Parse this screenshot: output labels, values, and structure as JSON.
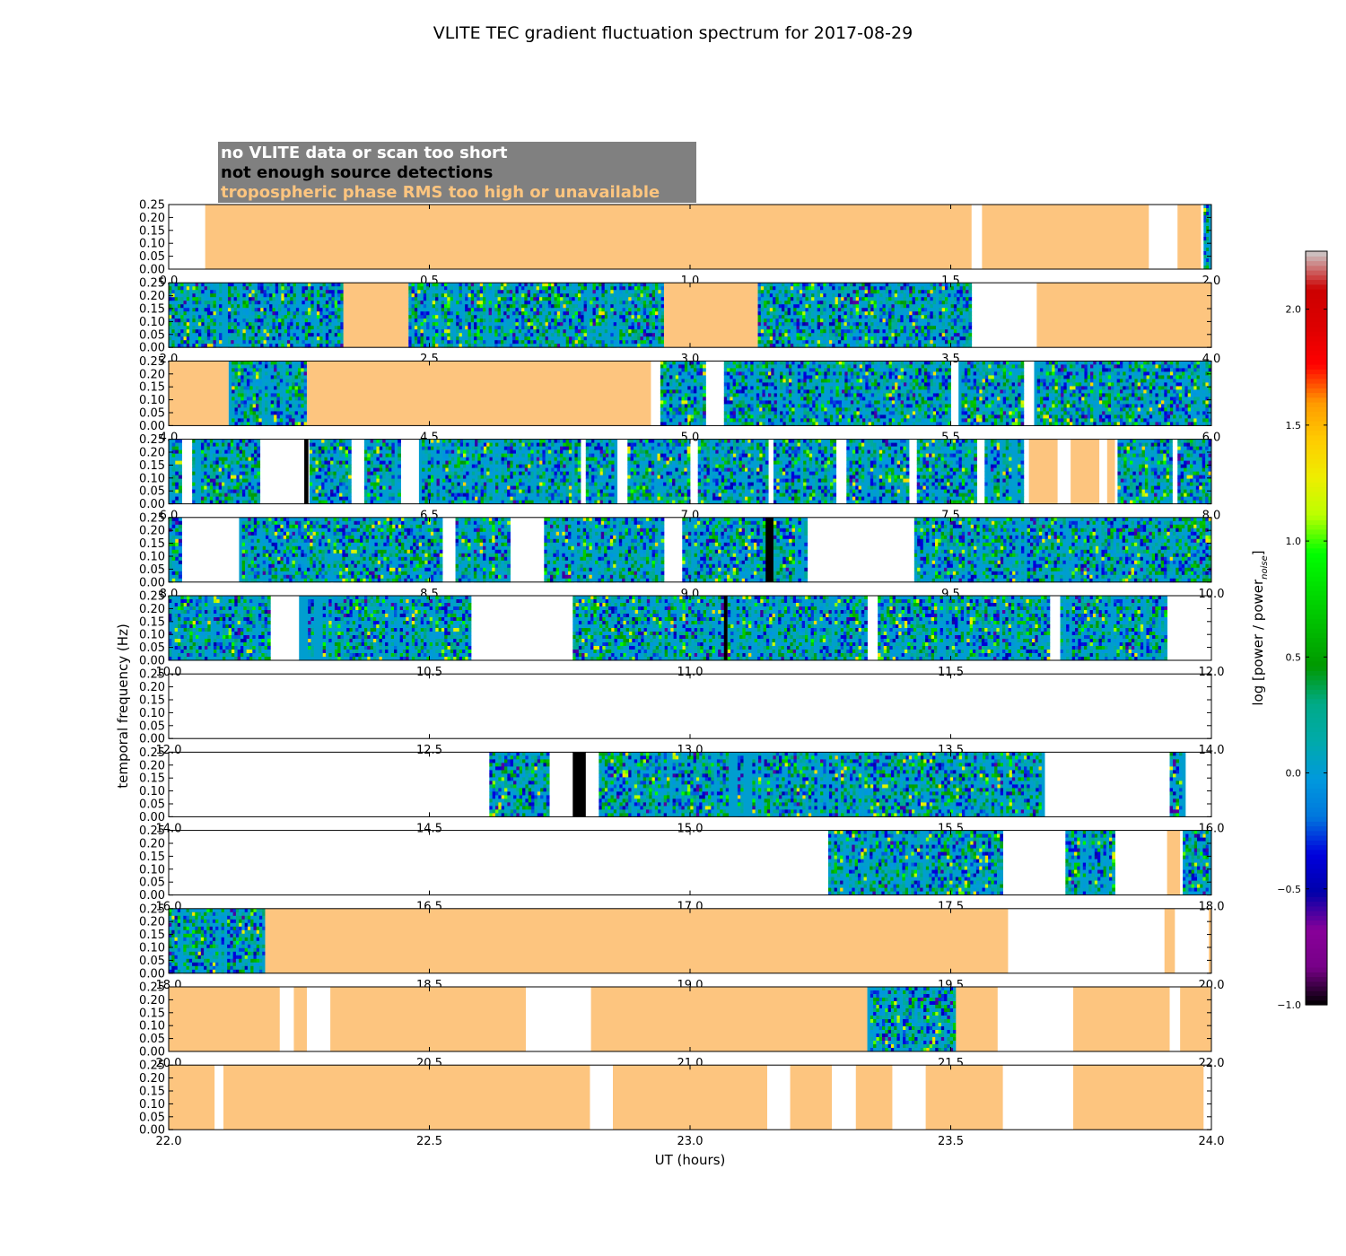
{
  "chart_data": {
    "type": "heatmap",
    "title": "VLITE TEC gradient fluctuation spectrum for 2017-08-29",
    "xlabel": "UT (hours)",
    "ylabel": "temporal frequency (Hz)",
    "colorbar": {
      "label_main": "log [power / power",
      "label_sub": "noise",
      "label_end": "]",
      "range": [
        -1.0,
        2.25
      ],
      "ticks": [
        {
          "value": -1.0,
          "label": "−1.0"
        },
        {
          "value": -0.5,
          "label": "−0.5"
        },
        {
          "value": 0.0,
          "label": "0.0"
        },
        {
          "value": 0.5,
          "label": "0.5"
        },
        {
          "value": 1.0,
          "label": "1.0"
        },
        {
          "value": 1.5,
          "label": "1.5"
        },
        {
          "value": 2.0,
          "label": "2.0"
        }
      ],
      "colormap": "nipy_spectral"
    },
    "legend": [
      {
        "label": "no VLITE data or scan too short",
        "color": "#ffffff"
      },
      {
        "label": "not enough source detections",
        "color": "#000000"
      },
      {
        "label": "tropospheric phase RMS too high or unavailable",
        "color": "#fdc57f"
      }
    ],
    "legend_background": "#808080",
    "colors": {
      "tropo": "#fdc57f",
      "nodet": "#000000",
      "nodata": "#ffffff"
    },
    "ylim": [
      0,
      0.25
    ],
    "yticks": [
      "0.00",
      "0.05",
      "0.10",
      "0.15",
      "0.20",
      "0.25"
    ],
    "panels": [
      {
        "xlim": [
          0,
          2
        ],
        "xticks": [
          "0.0",
          "0.5",
          "1.0",
          "1.5",
          "2.0"
        ],
        "segments": [
          [
            "tropo",
            0.07,
            1.54
          ],
          [
            "tropo",
            1.56,
            1.88
          ],
          [
            "tropo",
            1.935,
            1.98
          ],
          [
            "spec",
            1.985,
            2.0
          ]
        ]
      },
      {
        "xlim": [
          2,
          4
        ],
        "xticks": [
          "2.0",
          "2.5",
          "3.0",
          "3.5",
          "4.0"
        ],
        "segments": [
          [
            "spec",
            2.0,
            2.335
          ],
          [
            "tropo",
            2.335,
            2.46
          ],
          [
            "spec",
            2.46,
            2.95
          ],
          [
            "tropo",
            2.95,
            3.13
          ],
          [
            "spec",
            3.13,
            3.54
          ],
          [
            "tropo",
            3.665,
            4.0
          ]
        ]
      },
      {
        "xlim": [
          4,
          6
        ],
        "xticks": [
          "4.0",
          "4.5",
          "5.0",
          "5.5",
          "6.0"
        ],
        "segments": [
          [
            "tropo",
            4.0,
            4.115
          ],
          [
            "spec",
            4.115,
            4.265
          ],
          [
            "tropo",
            4.265,
            4.925
          ],
          [
            "spec",
            4.943,
            5.03
          ],
          [
            "spec",
            5.065,
            5.5
          ],
          [
            "spec",
            5.515,
            5.64
          ],
          [
            "spec",
            5.66,
            6.0
          ]
        ]
      },
      {
        "xlim": [
          6,
          8
        ],
        "xticks": [
          "6.0",
          "6.5",
          "7.0",
          "7.5",
          "8.0"
        ],
        "segments": [
          [
            "spec",
            6.0,
            6.025
          ],
          [
            "spec",
            6.045,
            6.175
          ],
          [
            "nodet",
            6.26,
            6.268
          ],
          [
            "spec",
            6.27,
            6.35
          ],
          [
            "spec",
            6.375,
            6.445
          ],
          [
            "spec",
            6.48,
            6.79
          ],
          [
            "spec",
            6.8,
            6.86
          ],
          [
            "spec",
            6.88,
            7.0
          ],
          [
            "spec",
            7.015,
            7.15
          ],
          [
            "spec",
            7.16,
            7.28
          ],
          [
            "spec",
            7.3,
            7.42
          ],
          [
            "spec",
            7.435,
            7.55
          ],
          [
            "spec",
            7.565,
            7.64
          ],
          [
            "tropo",
            7.65,
            7.705
          ],
          [
            "tropo",
            7.73,
            7.785
          ],
          [
            "tropo",
            7.8,
            7.815
          ],
          [
            "spec",
            7.82,
            7.925
          ],
          [
            "spec",
            7.935,
            8.0
          ]
        ]
      },
      {
        "xlim": [
          8,
          10
        ],
        "xticks": [
          "8.0",
          "8.5",
          "9.0",
          "9.5",
          "10.0"
        ],
        "segments": [
          [
            "spec",
            8.0,
            8.025
          ],
          [
            "spec",
            8.135,
            8.525
          ],
          [
            "spec",
            8.55,
            8.655
          ],
          [
            "spec",
            8.72,
            8.95
          ],
          [
            "spec",
            8.985,
            9.145
          ],
          [
            "nodet",
            9.145,
            9.16
          ],
          [
            "spec",
            9.16,
            9.225
          ],
          [
            "spec",
            9.43,
            10.0
          ]
        ]
      },
      {
        "xlim": [
          10,
          12
        ],
        "xticks": [
          "10.0",
          "10.5",
          "11.0",
          "11.5",
          "12.0"
        ],
        "segments": [
          [
            "spec",
            10.0,
            10.195
          ],
          [
            "spec",
            10.25,
            10.58
          ],
          [
            "spec",
            10.775,
            11.065
          ],
          [
            "nodet",
            11.065,
            11.072
          ],
          [
            "spec",
            11.072,
            11.34
          ],
          [
            "spec",
            11.36,
            11.69
          ],
          [
            "spec",
            11.71,
            11.915
          ]
        ]
      },
      {
        "xlim": [
          12,
          14
        ],
        "xticks": [
          "12.0",
          "12.5",
          "13.0",
          "13.5",
          "14.0"
        ],
        "segments": []
      },
      {
        "xlim": [
          14,
          16
        ],
        "xticks": [
          "14.0",
          "14.5",
          "15.0",
          "15.5",
          "16.0"
        ],
        "segments": [
          [
            "spec",
            14.615,
            14.73
          ],
          [
            "nodet",
            14.775,
            14.8
          ],
          [
            "spec",
            14.825,
            15.68
          ],
          [
            "spec",
            15.92,
            15.95
          ]
        ]
      },
      {
        "xlim": [
          16,
          18
        ],
        "xticks": [
          "16.0",
          "16.5",
          "17.0",
          "17.5",
          "18.0"
        ],
        "segments": [
          [
            "spec",
            17.265,
            17.6
          ],
          [
            "spec",
            17.72,
            17.815
          ],
          [
            "tropo",
            17.915,
            17.94
          ],
          [
            "spec",
            17.945,
            18.0
          ]
        ]
      },
      {
        "xlim": [
          18,
          20
        ],
        "xticks": [
          "18.0",
          "18.5",
          "19.0",
          "19.5",
          "20.0"
        ],
        "segments": [
          [
            "spec",
            18.0,
            18.185
          ],
          [
            "tropo",
            18.185,
            19.61
          ],
          [
            "tropo",
            19.91,
            19.93
          ],
          [
            "tropo",
            19.995,
            20.0
          ]
        ]
      },
      {
        "xlim": [
          20,
          22
        ],
        "xticks": [
          "20.0",
          "20.5",
          "21.0",
          "21.5",
          "22.0"
        ],
        "segments": [
          [
            "tropo",
            20.0,
            20.213
          ],
          [
            "tropo",
            20.24,
            20.265
          ],
          [
            "tropo",
            20.31,
            20.685
          ],
          [
            "tropo",
            20.81,
            21.34
          ],
          [
            "spec",
            21.34,
            21.51
          ],
          [
            "tropo",
            21.51,
            21.59
          ],
          [
            "tropo",
            21.735,
            21.92
          ],
          [
            "tropo",
            21.94,
            22.0
          ]
        ]
      },
      {
        "xlim": [
          22,
          24
        ],
        "xticks": [
          "22.0",
          "22.5",
          "23.0",
          "23.5",
          "24.0"
        ],
        "segments": [
          [
            "tropo",
            22.0,
            22.088
          ],
          [
            "tropo",
            22.105,
            22.808
          ],
          [
            "tropo",
            22.852,
            23.148
          ],
          [
            "tropo",
            23.192,
            23.272
          ],
          [
            "tropo",
            23.318,
            23.388
          ],
          [
            "tropo",
            23.452,
            23.6
          ],
          [
            "tropo",
            23.735,
            23.985
          ]
        ]
      }
    ]
  }
}
